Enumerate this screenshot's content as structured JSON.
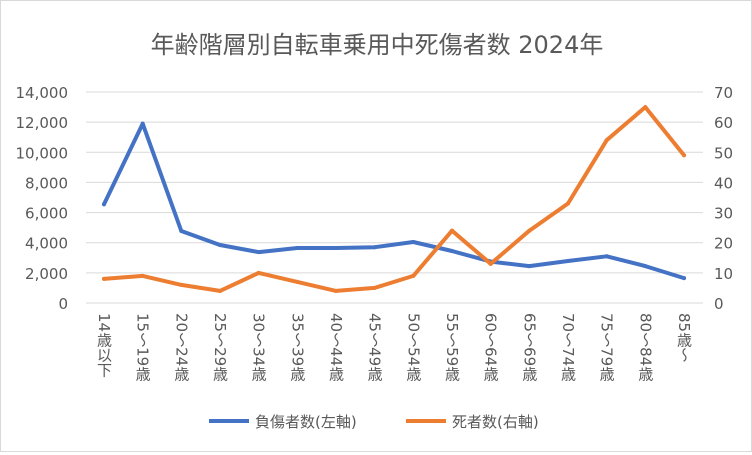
{
  "chart_data": {
    "type": "line",
    "title": "年齢階層別自転車乗用中死傷者数 2024年",
    "categories": [
      "14歳以下",
      "15～19歳",
      "20～24歳",
      "25～29歳",
      "30～34歳",
      "35～39歳",
      "40～44歳",
      "45～49歳",
      "50～54歳",
      "55～59歳",
      "60～64歳",
      "65～69歳",
      "70～74歳",
      "75～79歳",
      "80～84歳",
      "85歳～"
    ],
    "series": [
      {
        "name": "負傷者数(左軸)",
        "axis": "left",
        "color": "#4472c4",
        "values": [
          6550,
          11900,
          4780,
          3850,
          3380,
          3650,
          3650,
          3700,
          4050,
          3450,
          2750,
          2450,
          2790,
          3100,
          2450,
          1650
        ]
      },
      {
        "name": "死者数(右軸)",
        "axis": "right",
        "color": "#ed7d31",
        "values": [
          8,
          9,
          6,
          4,
          10,
          7,
          4,
          5,
          9,
          24,
          13,
          24,
          33,
          54,
          65,
          49
        ]
      }
    ],
    "y_left": {
      "range": [
        0,
        14000
      ],
      "ticks": [
        "0",
        "2,000",
        "4,000",
        "6,000",
        "8,000",
        "10,000",
        "12,000",
        "14,000"
      ]
    },
    "y_right": {
      "range": [
        0,
        70
      ],
      "ticks": [
        "0",
        "10",
        "20",
        "30",
        "40",
        "50",
        "60",
        "70"
      ]
    },
    "grid": true,
    "legend": "bottom"
  }
}
